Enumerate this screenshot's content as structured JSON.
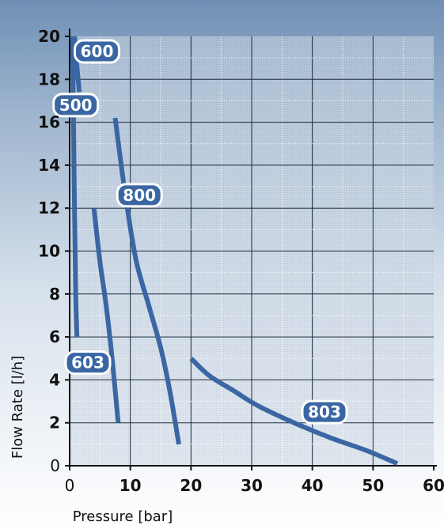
{
  "chart_data": {
    "type": "line",
    "xlabel": "Pressure [bar]",
    "ylabel": "Flow Rate [l/h]",
    "xlim": [
      0,
      60
    ],
    "ylim": [
      0,
      20
    ],
    "x_ticks": [
      "0",
      "10",
      "20",
      "30",
      "40",
      "50",
      "60"
    ],
    "y_ticks": [
      "0",
      "2",
      "4",
      "6",
      "8",
      "10",
      "12",
      "14",
      "16",
      "18",
      "20"
    ],
    "grid": true,
    "series": [
      {
        "name": "600",
        "points": [
          [
            0.8,
            20
          ],
          [
            1.2,
            18.6
          ],
          [
            1.6,
            17.4
          ]
        ]
      },
      {
        "name": "500",
        "points": [
          [
            0.5,
            20
          ],
          [
            0.6,
            17
          ],
          [
            0.8,
            12
          ],
          [
            1.0,
            8
          ],
          [
            1.2,
            6
          ]
        ]
      },
      {
        "name": "800",
        "points": [
          [
            7.5,
            16.2
          ],
          [
            8.5,
            14
          ],
          [
            9.5,
            12
          ],
          [
            11.0,
            9.5
          ],
          [
            13.0,
            7.5
          ],
          [
            15.0,
            5.5
          ],
          [
            16.5,
            3.5
          ],
          [
            18.0,
            1
          ]
        ]
      },
      {
        "name": "603",
        "points": [
          [
            4.0,
            12
          ],
          [
            5.0,
            9.5
          ],
          [
            6.0,
            7.5
          ],
          [
            7.0,
            5
          ],
          [
            8.0,
            2
          ]
        ]
      },
      {
        "name": "803",
        "points": [
          [
            20,
            5
          ],
          [
            23,
            4.2
          ],
          [
            27,
            3.5
          ],
          [
            31,
            2.8
          ],
          [
            37,
            2.0
          ],
          [
            43,
            1.3
          ],
          [
            49,
            0.7
          ],
          [
            54,
            0.1
          ]
        ]
      }
    ],
    "colors": {
      "series": "#3a67a3",
      "badge_stroke": "#ffffff",
      "grid": "#ffffff",
      "plot_bg": "#c5d2e0"
    }
  }
}
